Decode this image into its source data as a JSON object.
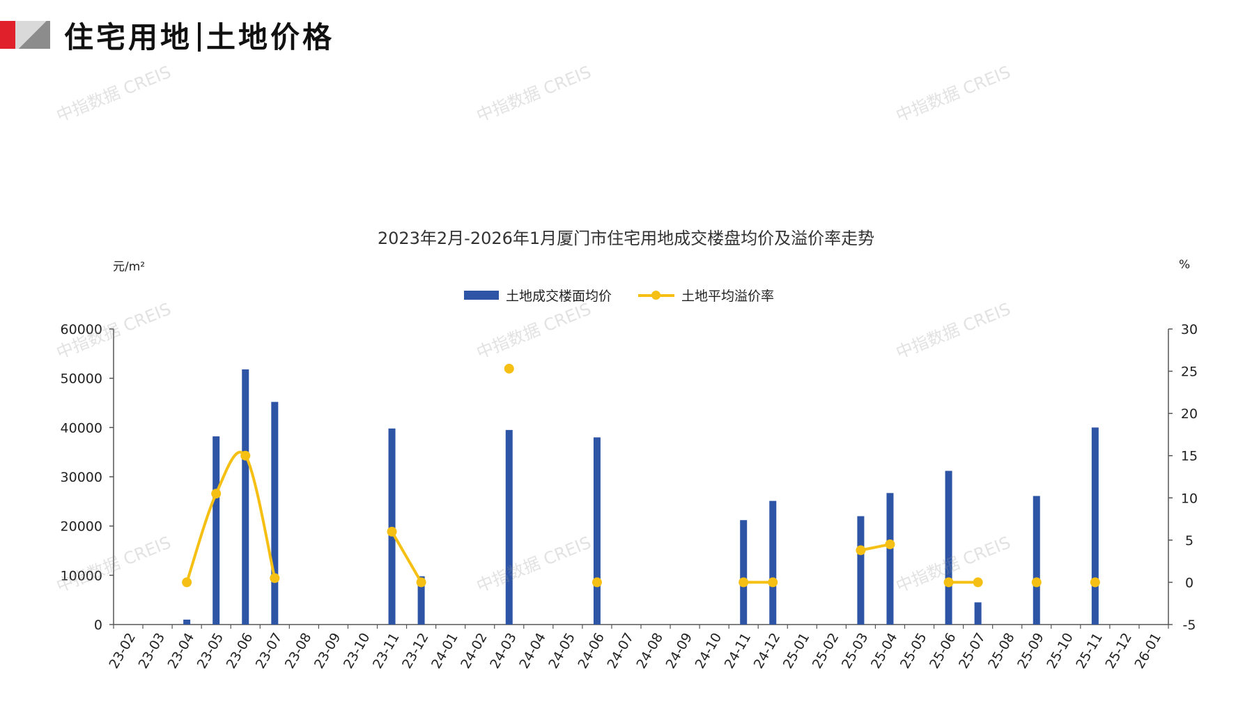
{
  "header": {
    "title_left": "住宅用地",
    "title_right": "土地价格"
  },
  "watermark": "中指数据 CREIS",
  "colors": {
    "bar": "#2e55a5",
    "line": "#f5c013",
    "logo_red": "#e0202a",
    "logo_grey": "#8c8c8c"
  },
  "chart_data": {
    "type": "bar+line",
    "title": "2023年2月-2026年1月厦门市住宅用地成交楼盘均价及溢价率走势",
    "y_left_unit": "元/m²",
    "y_right_unit": "%",
    "ylim_left": [
      0,
      60000
    ],
    "yticks_left": [
      "0",
      "10000",
      "20000",
      "30000",
      "40000",
      "50000",
      "60000"
    ],
    "ylim_right": [
      -5,
      30
    ],
    "yticks_right": [
      "-5",
      "0",
      "5",
      "10",
      "15",
      "20",
      "25",
      "30"
    ],
    "legend_position": "top-center",
    "categories": [
      "23-02",
      "23-03",
      "23-04",
      "23-05",
      "23-06",
      "23-07",
      "23-08",
      "23-09",
      "23-10",
      "23-11",
      "23-12",
      "24-01",
      "24-02",
      "24-03",
      "24-04",
      "24-05",
      "24-06",
      "24-07",
      "24-08",
      "24-09",
      "24-10",
      "24-11",
      "24-12",
      "25-01",
      "25-02",
      "25-03",
      "25-04",
      "25-05",
      "25-06",
      "25-07",
      "25-08",
      "25-09",
      "25-10",
      "25-11",
      "25-12",
      "26-01"
    ],
    "series": [
      {
        "name": "土地成交楼面均价",
        "type": "bar",
        "values": [
          null,
          null,
          1000,
          38200,
          51800,
          45200,
          null,
          null,
          null,
          39800,
          9800,
          null,
          null,
          39500,
          null,
          null,
          38000,
          null,
          null,
          null,
          null,
          21200,
          25100,
          null,
          null,
          22000,
          26700,
          null,
          31200,
          4500,
          null,
          26100,
          null,
          40000,
          null,
          null
        ]
      },
      {
        "name": "土地平均溢价率",
        "type": "line",
        "values": [
          null,
          null,
          0,
          10.5,
          15,
          0.5,
          null,
          null,
          null,
          6,
          0,
          null,
          null,
          25.3,
          null,
          null,
          0,
          null,
          null,
          null,
          null,
          0,
          0,
          null,
          null,
          3.8,
          4.5,
          null,
          0,
          0,
          null,
          0,
          null,
          0,
          null,
          null
        ]
      }
    ]
  }
}
